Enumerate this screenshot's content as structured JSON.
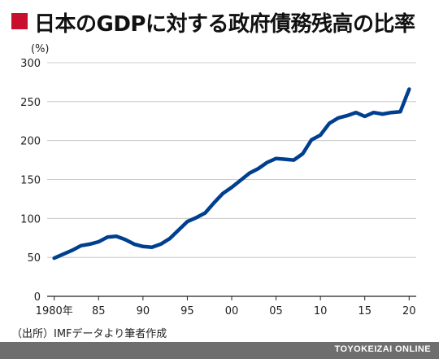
{
  "header": {
    "title": "日本のGDPに対する政府債務残高の比率"
  },
  "source": "（出所）IMFデータより筆者作成",
  "footer": {
    "brand": "TOYOKEIZAI ONLINE"
  },
  "colors": {
    "accent": "#c8102e",
    "line": "#003f8f",
    "footer": "#6e6e6e"
  },
  "chart_data": {
    "type": "line",
    "title": "日本のGDPに対する政府債務残高の比率",
    "unit_label": "(%)",
    "ylim": [
      0,
      300
    ],
    "yticks": [
      0,
      50,
      100,
      150,
      200,
      250,
      300
    ],
    "xlim": [
      1980,
      2020
    ],
    "xticks": [
      {
        "value": 1980,
        "label": "1980年"
      },
      {
        "value": 1985,
        "label": "85"
      },
      {
        "value": 1990,
        "label": "90"
      },
      {
        "value": 1995,
        "label": "95"
      },
      {
        "value": 2000,
        "label": "00"
      },
      {
        "value": 2005,
        "label": "05"
      },
      {
        "value": 2010,
        "label": "10"
      },
      {
        "value": 2015,
        "label": "15"
      },
      {
        "value": 2020,
        "label": "20"
      }
    ],
    "grid": true,
    "series": [
      {
        "x": [
          1980,
          1981,
          1982,
          1983,
          1984,
          1985,
          1986,
          1987,
          1988,
          1989,
          1990,
          1991,
          1992,
          1993,
          1994,
          1995,
          1996,
          1997,
          1998,
          1999,
          2000,
          2001,
          2002,
          2003,
          2004,
          2005,
          2006,
          2007,
          2008,
          2009,
          2010,
          2011,
          2012,
          2013,
          2014,
          2015,
          2016,
          2017,
          2018,
          2019,
          2020
        ],
        "values": [
          49,
          54,
          59,
          65,
          67,
          70,
          76,
          77,
          73,
          67,
          64,
          63,
          67,
          74,
          85,
          96,
          101,
          107,
          120,
          132,
          140,
          149,
          158,
          164,
          172,
          177,
          176,
          175,
          183,
          201,
          207,
          222,
          229,
          232,
          236,
          231,
          236,
          234,
          236,
          237,
          266
        ]
      }
    ]
  }
}
